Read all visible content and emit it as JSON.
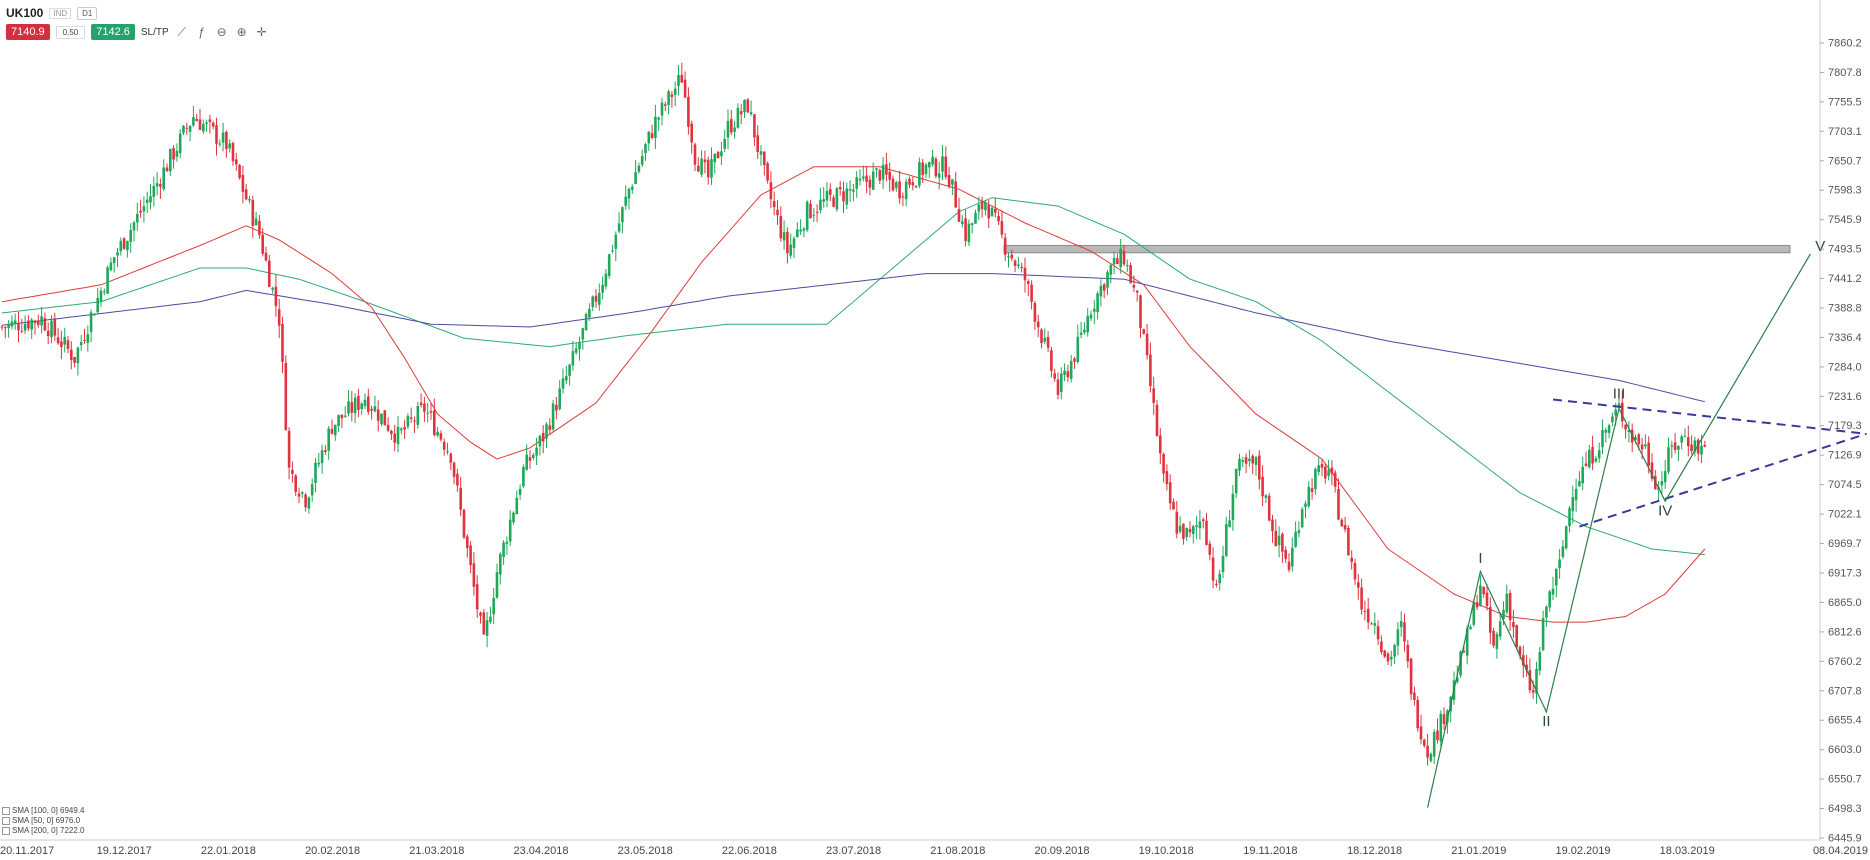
{
  "toolbar": {
    "symbol": "UK100",
    "source": "IND",
    "timeframe": "D1",
    "sell_price": "7140.9",
    "spread": "0.50",
    "buy_price": "7142.6",
    "sltp_label": "SL/TP",
    "icons": [
      "line-chart-icon",
      "function-icon",
      "zoom-out-icon",
      "zoom-in-icon",
      "crosshair-icon"
    ]
  },
  "legend": [
    {
      "label": "SMA [100, 0] 6949.4"
    },
    {
      "label": "SMA [50, 0] 6976.0"
    },
    {
      "label": "SMA [200, 0] 7222.0"
    }
  ],
  "chart_data": {
    "type": "candlestick",
    "y_ticks": [
      "7860.2",
      "7807.8",
      "7755.5",
      "7703.1",
      "7650.7",
      "7598.3",
      "7545.9",
      "7493.5",
      "7441.2",
      "7388.8",
      "7336.4",
      "7284.0",
      "7231.6",
      "7179.3",
      "7126.9",
      "7074.5",
      "7022.1",
      "6969.7",
      "6917.3",
      "6865.0",
      "6812.6",
      "6760.2",
      "6707.8",
      "6655.4",
      "6603.0",
      "6550.7",
      "6498.3",
      "6445.9"
    ],
    "x_ticks": [
      "20.11.2017",
      "19.12.2017",
      "22.01.2018",
      "20.02.2018",
      "21.03.2018",
      "23.04.2018",
      "23.05.2018",
      "22.06.2018",
      "23.07.2018",
      "21.08.2018",
      "20.09.2018",
      "19.10.2018",
      "19.11.2018",
      "18.12.2018",
      "21.01.2019",
      "19.02.2019",
      "18.03.2019",
      "08.04.2019"
    ],
    "ylim": [
      6445.9,
      7860.2
    ],
    "up_color": "#1fa85a",
    "down_color": "#e03340",
    "resistance_zone": [
      7487,
      7500
    ],
    "close_anchors": [
      [
        0,
        7355
      ],
      [
        12,
        7370
      ],
      [
        22,
        7300
      ],
      [
        34,
        7480
      ],
      [
        46,
        7600
      ],
      [
        58,
        7730
      ],
      [
        68,
        7680
      ],
      [
        78,
        7520
      ],
      [
        84,
        7370
      ],
      [
        87,
        7100
      ],
      [
        92,
        7050
      ],
      [
        100,
        7180
      ],
      [
        110,
        7230
      ],
      [
        120,
        7160
      ],
      [
        128,
        7210
      ],
      [
        136,
        7130
      ],
      [
        140,
        6990
      ],
      [
        146,
        6790
      ],
      [
        150,
        6920
      ],
      [
        158,
        7100
      ],
      [
        164,
        7160
      ],
      [
        172,
        7280
      ],
      [
        182,
        7440
      ],
      [
        190,
        7600
      ],
      [
        198,
        7720
      ],
      [
        206,
        7800
      ],
      [
        210,
        7660
      ],
      [
        214,
        7620
      ],
      [
        220,
        7710
      ],
      [
        226,
        7750
      ],
      [
        232,
        7600
      ],
      [
        238,
        7490
      ],
      [
        244,
        7560
      ],
      [
        250,
        7580
      ],
      [
        258,
        7600
      ],
      [
        266,
        7630
      ],
      [
        272,
        7600
      ],
      [
        280,
        7640
      ],
      [
        286,
        7640
      ],
      [
        292,
        7520
      ],
      [
        298,
        7580
      ],
      [
        304,
        7500
      ],
      [
        310,
        7440
      ],
      [
        316,
        7320
      ],
      [
        320,
        7240
      ],
      [
        326,
        7320
      ],
      [
        330,
        7390
      ],
      [
        336,
        7460
      ],
      [
        340,
        7480
      ],
      [
        344,
        7400
      ],
      [
        348,
        7250
      ],
      [
        352,
        7080
      ],
      [
        356,
        7000
      ],
      [
        360,
        6980
      ],
      [
        364,
        7020
      ],
      [
        368,
        6880
      ],
      [
        374,
        7100
      ],
      [
        380,
        7110
      ],
      [
        386,
        6980
      ],
      [
        390,
        6930
      ],
      [
        394,
        7040
      ],
      [
        398,
        7090
      ],
      [
        402,
        7100
      ],
      [
        408,
        6960
      ],
      [
        412,
        6860
      ],
      [
        416,
        6830
      ],
      [
        420,
        6760
      ],
      [
        424,
        6820
      ],
      [
        428,
        6680
      ],
      [
        432,
        6600
      ],
      [
        436,
        6650
      ],
      [
        440,
        6720
      ],
      [
        444,
        6800
      ],
      [
        448,
        6900
      ],
      [
        452,
        6780
      ],
      [
        456,
        6880
      ],
      [
        460,
        6760
      ],
      [
        464,
        6700
      ],
      [
        468,
        6860
      ],
      [
        472,
        6930
      ],
      [
        476,
        7070
      ],
      [
        480,
        7110
      ],
      [
        484,
        7150
      ],
      [
        488,
        7190
      ],
      [
        490,
        7210
      ],
      [
        494,
        7160
      ],
      [
        498,
        7140
      ],
      [
        500,
        7100
      ],
      [
        502,
        7070
      ],
      [
        506,
        7140
      ],
      [
        510,
        7160
      ],
      [
        514,
        7140
      ]
    ],
    "sma": [
      {
        "name": "SMA [100, 0]",
        "value": 6949.4,
        "color": "#2eaa78",
        "anchors": [
          [
            0,
            7380
          ],
          [
            30,
            7400
          ],
          [
            60,
            7460
          ],
          [
            74,
            7460
          ],
          [
            90,
            7440
          ],
          [
            110,
            7400
          ],
          [
            140,
            7335
          ],
          [
            166,
            7320
          ],
          [
            190,
            7340
          ],
          [
            220,
            7360
          ],
          [
            250,
            7360
          ],
          [
            270,
            7460
          ],
          [
            290,
            7560
          ],
          [
            300,
            7585
          ],
          [
            320,
            7570
          ],
          [
            340,
            7520
          ],
          [
            360,
            7440
          ],
          [
            380,
            7400
          ],
          [
            400,
            7330
          ],
          [
            420,
            7240
          ],
          [
            440,
            7150
          ],
          [
            460,
            7060
          ],
          [
            480,
            7000
          ],
          [
            500,
            6960
          ],
          [
            516,
            6950
          ]
        ]
      },
      {
        "name": "SMA [50, 0]",
        "value": 6976.0,
        "color": "#de3b3b",
        "anchors": [
          [
            0,
            7400
          ],
          [
            30,
            7430
          ],
          [
            60,
            7500
          ],
          [
            74,
            7535
          ],
          [
            84,
            7510
          ],
          [
            100,
            7450
          ],
          [
            112,
            7390
          ],
          [
            122,
            7300
          ],
          [
            132,
            7200
          ],
          [
            142,
            7150
          ],
          [
            150,
            7120
          ],
          [
            160,
            7140
          ],
          [
            180,
            7220
          ],
          [
            196,
            7340
          ],
          [
            212,
            7470
          ],
          [
            230,
            7590
          ],
          [
            246,
            7640
          ],
          [
            266,
            7640
          ],
          [
            290,
            7600
          ],
          [
            310,
            7540
          ],
          [
            330,
            7490
          ],
          [
            346,
            7430
          ],
          [
            360,
            7320
          ],
          [
            380,
            7200
          ],
          [
            400,
            7120
          ],
          [
            420,
            6960
          ],
          [
            440,
            6880
          ],
          [
            456,
            6840
          ],
          [
            470,
            6830
          ],
          [
            480,
            6830
          ],
          [
            492,
            6840
          ],
          [
            504,
            6880
          ],
          [
            516,
            6960
          ]
        ]
      },
      {
        "name": "SMA [200, 0]",
        "value": 7222.0,
        "color": "#4a4ca0",
        "anchors": [
          [
            0,
            7358
          ],
          [
            60,
            7400
          ],
          [
            74,
            7420
          ],
          [
            100,
            7395
          ],
          [
            130,
            7360
          ],
          [
            160,
            7355
          ],
          [
            190,
            7380
          ],
          [
            220,
            7410
          ],
          [
            250,
            7430
          ],
          [
            280,
            7450
          ],
          [
            300,
            7450
          ],
          [
            340,
            7440
          ],
          [
            380,
            7380
          ],
          [
            420,
            7330
          ],
          [
            460,
            7290
          ],
          [
            490,
            7260
          ],
          [
            516,
            7222
          ]
        ]
      }
    ],
    "triangle": {
      "upper": [
        [
          470,
          7226
        ],
        [
          565,
          7165
        ]
      ],
      "lower": [
        [
          478,
          7000
        ],
        [
          565,
          7165
        ]
      ]
    },
    "wave_path": [
      [
        432,
        6500
      ],
      [
        448,
        6920
      ],
      [
        468,
        6670
      ],
      [
        490,
        7210
      ],
      [
        504,
        7045
      ],
      [
        548,
        7485
      ]
    ],
    "wave_labels": [
      {
        "text": "I",
        "x": 448,
        "y": 6935
      },
      {
        "text": "II",
        "x": 468,
        "y": 6645
      },
      {
        "text": "III",
        "x": 490,
        "y": 7228
      },
      {
        "text": "IV",
        "x": 504,
        "y": 7020
      },
      {
        "text": "V",
        "x": 551,
        "y": 7490
      }
    ]
  }
}
